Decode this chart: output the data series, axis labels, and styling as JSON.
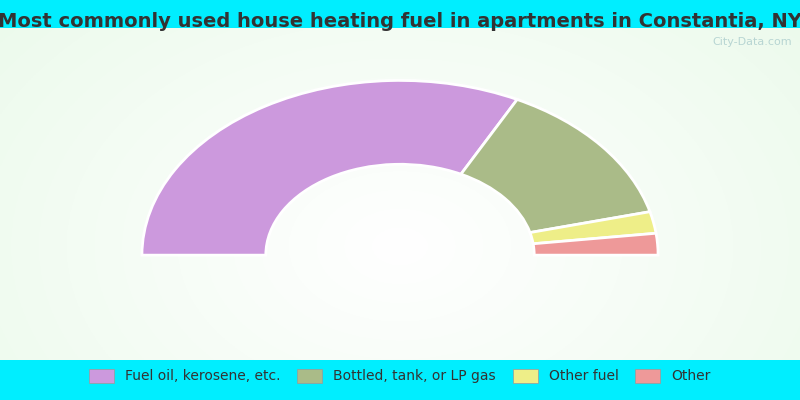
{
  "title": "Most commonly used house heating fuel in apartments in Constantia, NY",
  "segments": [
    {
      "label": "Fuel oil, kerosene, etc.",
      "value": 65,
      "color": "#cc99dd"
    },
    {
      "label": "Bottled, tank, or LP gas",
      "value": 27,
      "color": "#aabb88"
    },
    {
      "label": "Other fuel",
      "value": 4,
      "color": "#eeee88"
    },
    {
      "label": "Other",
      "value": 4,
      "color": "#ee9999"
    }
  ],
  "background_color": "#00eeff",
  "title_color": "#333333",
  "title_fontsize": 14,
  "legend_fontsize": 10,
  "watermark": "City-Data.com",
  "outer_r": 1.0,
  "inner_r": 0.52
}
